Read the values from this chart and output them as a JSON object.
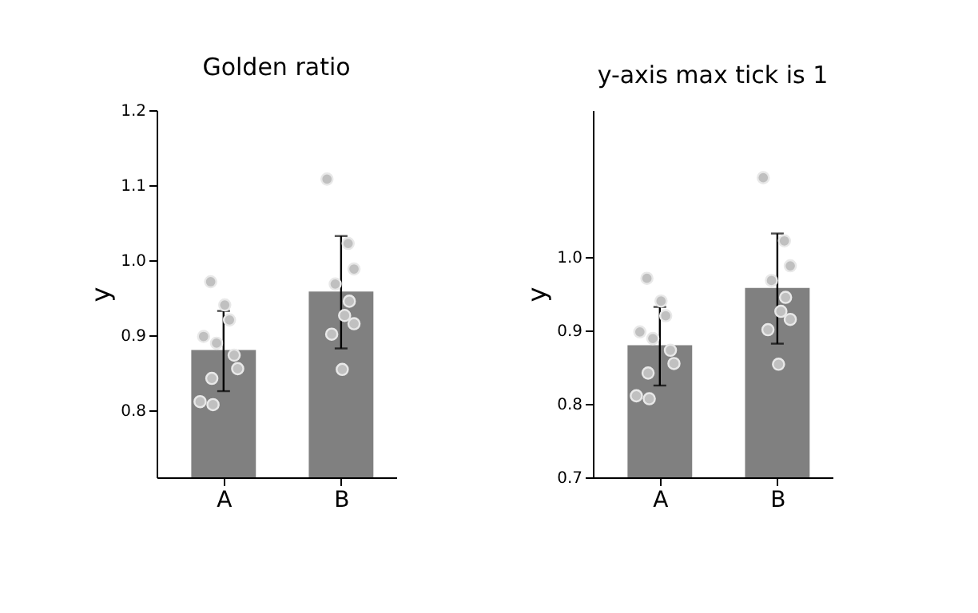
{
  "chart_data": [
    {
      "type": "bar",
      "title": "Golden ratio",
      "ylabel": "y",
      "categories": [
        "A",
        "B"
      ],
      "ylim": [
        0.71,
        1.2
      ],
      "yticks": [
        0.8,
        0.9,
        {
          "value": 1,
          "label": "1.0"
        },
        1.1,
        1.2
      ],
      "grid": false,
      "series": [
        {
          "type": "bar",
          "color": "#808080",
          "values": [
            0.88,
            0.958
          ],
          "errors": [
            [
              0.825,
              0.932
            ],
            [
              0.882,
              1.032
            ]
          ]
        },
        {
          "type": "scatter",
          "color": "#c0c0c0",
          "x": [
            "A",
            "A",
            "A",
            "A",
            "A",
            "A",
            "A",
            "A",
            "A",
            "A",
            "B",
            "B",
            "B",
            "B",
            "B",
            "B",
            "B",
            "B",
            "B"
          ],
          "values": [
            0.971,
            0.94,
            0.92,
            0.898,
            0.889,
            0.873,
            0.855,
            0.842,
            0.811,
            0.807,
            1.108,
            1.022,
            0.988,
            0.968,
            0.945,
            0.926,
            0.915,
            0.901,
            0.854
          ]
        }
      ]
    },
    {
      "type": "bar",
      "title": "y-axis max tick is 1",
      "ylabel": "y",
      "categories": [
        "A",
        "B"
      ],
      "ylim": [
        0.7,
        1.2
      ],
      "yticks": [
        0.7,
        0.8,
        0.9,
        {
          "value": 1,
          "label": "1.0"
        }
      ],
      "grid": false,
      "series": [
        {
          "type": "bar",
          "color": "#808080",
          "values": [
            0.88,
            0.958
          ],
          "errors": [
            [
              0.825,
              0.932
            ],
            [
              0.882,
              1.032
            ]
          ]
        },
        {
          "type": "scatter",
          "color": "#c0c0c0",
          "x": [
            "A",
            "A",
            "A",
            "A",
            "A",
            "A",
            "A",
            "A",
            "A",
            "A",
            "B",
            "B",
            "B",
            "B",
            "B",
            "B",
            "B",
            "B",
            "B"
          ],
          "values": [
            0.971,
            0.94,
            0.92,
            0.898,
            0.889,
            0.873,
            0.855,
            0.842,
            0.811,
            0.807,
            1.108,
            1.022,
            0.988,
            0.968,
            0.945,
            0.926,
            0.915,
            0.901,
            0.854
          ]
        }
      ]
    }
  ]
}
